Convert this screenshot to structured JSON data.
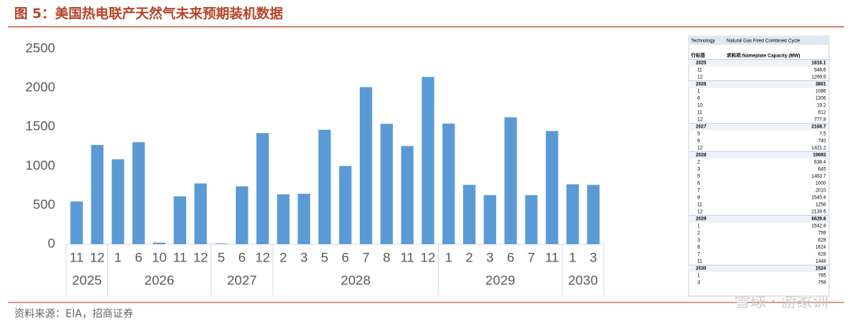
{
  "title": "图 5：美国热电联产天然气未来预期装机数据",
  "source": "资料来源：EIA，招商证券",
  "watermark": "雪球 · 游家训",
  "chart_data": {
    "type": "bar",
    "color": "#5b9bd5",
    "grid": false,
    "ylim": [
      0,
      2500
    ],
    "yticks": [
      0,
      500,
      1000,
      1500,
      2000,
      2500
    ],
    "groups": [
      {
        "name": "2025",
        "categories": [
          "11",
          "12"
        ],
        "values": [
          546.6,
          1269.5
        ]
      },
      {
        "name": "2026",
        "categories": [
          "1",
          "6",
          "10",
          "11",
          "12"
        ],
        "values": [
          1086,
          1306,
          19.2,
          612,
          777.8
        ]
      },
      {
        "name": "2027",
        "categories": [
          "5",
          "6",
          "12"
        ],
        "values": [
          7.5,
          740,
          1421.2
        ]
      },
      {
        "name": "2028",
        "categories": [
          "2",
          "3",
          "5",
          "6",
          "7",
          "8",
          "11",
          "12"
        ],
        "values": [
          638.4,
          645,
          1463.7,
          1000,
          2010,
          1540.4,
          1256,
          2139.5
        ]
      },
      {
        "name": "2029",
        "categories": [
          "1",
          "2",
          "3",
          "6",
          "7",
          "11"
        ],
        "values": [
          1542.8,
          759,
          628,
          1624,
          628,
          1448
        ]
      },
      {
        "name": "2030",
        "categories": [
          "1",
          "3"
        ],
        "values": [
          765,
          759
        ]
      }
    ]
  },
  "table": {
    "filter_label": "Technology",
    "filter_value": "Natural Gas Fired Combined Cycle",
    "row_header": "行标签",
    "value_header": "求和项:Nameplate Capacity (MW)",
    "groups": [
      {
        "label": "2025",
        "total": 1816.1,
        "rows": [
          {
            "label": "11",
            "value": 546.6
          },
          {
            "label": "12",
            "value": 1269.5
          }
        ]
      },
      {
        "label": "2026",
        "total": 3801,
        "rows": [
          {
            "label": "1",
            "value": 1086
          },
          {
            "label": "6",
            "value": 1306
          },
          {
            "label": "10",
            "value": 19.2
          },
          {
            "label": "11",
            "value": 612
          },
          {
            "label": "12",
            "value": 777.8
          }
        ]
      },
      {
        "label": "2027",
        "total": 2168.7,
        "rows": [
          {
            "label": "5",
            "value": 7.5
          },
          {
            "label": "6",
            "value": 740
          },
          {
            "label": "12",
            "value": 1421.2
          }
        ]
      },
      {
        "label": "2028",
        "total": 10693,
        "rows": [
          {
            "label": "2",
            "value": 638.4
          },
          {
            "label": "3",
            "value": 645
          },
          {
            "label": "5",
            "value": 1463.7
          },
          {
            "label": "6",
            "value": 1000
          },
          {
            "label": "7",
            "value": 2010
          },
          {
            "label": "8",
            "value": 1540.4
          },
          {
            "label": "11",
            "value": 1256
          },
          {
            "label": "12",
            "value": 2139.5
          }
        ]
      },
      {
        "label": "2029",
        "total": 6629.8,
        "rows": [
          {
            "label": "1",
            "value": 1542.8
          },
          {
            "label": "2",
            "value": 759
          },
          {
            "label": "3",
            "value": 628
          },
          {
            "label": "6",
            "value": 1624
          },
          {
            "label": "7",
            "value": 628
          },
          {
            "label": "11",
            "value": 1448
          }
        ]
      },
      {
        "label": "2030",
        "total": 1524,
        "rows": [
          {
            "label": "1",
            "value": 765
          },
          {
            "label": "3",
            "value": 759
          }
        ]
      }
    ]
  }
}
